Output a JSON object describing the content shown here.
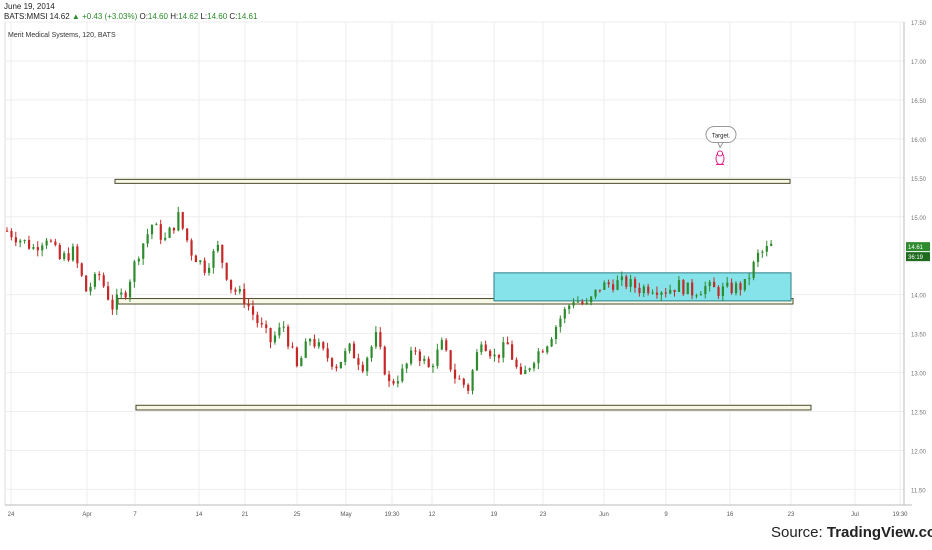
{
  "header": {
    "date": "June 19, 2014",
    "symbol": "BATS:MMSI",
    "last": "14.62",
    "change": "+0.43 (+3.03%)",
    "o_label": "O:",
    "o": "14.60",
    "h_label": "H:",
    "h": "14.62",
    "l_label": "L:",
    "l": "14.60",
    "c_label": "C:",
    "c": "14.61"
  },
  "legend": "Merit Medical Systems, 120, BATS",
  "footer": {
    "source_prefix": "Source: ",
    "source_name": "TradingView.com"
  },
  "chart_data": {
    "type": "candlestick",
    "ylim": [
      11.3,
      17.5
    ],
    "yticks": [
      "17.50",
      "17.00",
      "16.50",
      "16.00",
      "15.50",
      "15.00",
      "14.00",
      "13.50",
      "13.00",
      "12.50",
      "12.00",
      "11.50"
    ],
    "xticks": [
      "24",
      "Apr",
      "7",
      "14",
      "21",
      "25",
      "May",
      "19:30",
      "12",
      "19",
      "23",
      "Jun",
      "9",
      "16",
      "23",
      "Jul",
      "19:30"
    ],
    "price_badge": "14.61",
    "time_badge": "36:19",
    "colors": {
      "up": "#2e8b2e",
      "down": "#c62828",
      "grid": "#eeeeee",
      "box_border": "#4a4a2a",
      "box_fill": "#f8f8e6",
      "range_fill": "#86e3ea",
      "range_border": "#2a7f88",
      "marker": "#e0208a"
    },
    "annotation": {
      "text": "Target.",
      "price": 16.03
    },
    "support_resistance": [
      {
        "top": 15.48,
        "bottom": 15.43
      },
      {
        "top": 13.95,
        "bottom": 13.88
      },
      {
        "top": 12.58,
        "bottom": 12.52
      }
    ],
    "range_box": {
      "top": 14.28,
      "bottom": 13.92
    },
    "anchors": [
      [
        14.82,
        0
      ],
      [
        14.6,
        2
      ],
      [
        14.75,
        3
      ],
      [
        14.45,
        4
      ],
      [
        14.55,
        5
      ],
      [
        14.05,
        6
      ],
      [
        14.25,
        7
      ],
      [
        13.85,
        8
      ],
      [
        14.05,
        9
      ],
      [
        14.55,
        10
      ],
      [
        14.9,
        11
      ],
      [
        14.7,
        12
      ],
      [
        15.0,
        13
      ],
      [
        14.55,
        14
      ],
      [
        14.35,
        15
      ],
      [
        14.6,
        16
      ],
      [
        14.1,
        17
      ],
      [
        13.95,
        18
      ],
      [
        13.65,
        19
      ],
      [
        13.4,
        20
      ],
      [
        13.6,
        21
      ],
      [
        13.05,
        22
      ],
      [
        13.45,
        23
      ],
      [
        13.25,
        24
      ],
      [
        13.1,
        25
      ],
      [
        13.3,
        26
      ],
      [
        13.1,
        27
      ],
      [
        13.45,
        28
      ],
      [
        12.85,
        29
      ],
      [
        13.0,
        30
      ],
      [
        13.3,
        31
      ],
      [
        13.05,
        32
      ],
      [
        13.35,
        33
      ],
      [
        12.95,
        34
      ],
      [
        12.8,
        35
      ],
      [
        13.45,
        36
      ],
      [
        13.2,
        37
      ],
      [
        13.35,
        38
      ],
      [
        12.9,
        39
      ],
      [
        13.2,
        40
      ],
      [
        13.4,
        41
      ],
      [
        13.7,
        42
      ],
      [
        13.95,
        43
      ],
      [
        13.85,
        44
      ],
      [
        14.1,
        45
      ],
      [
        14.15,
        46
      ],
      [
        14.15,
        47
      ],
      [
        14.08,
        48
      ],
      [
        14.1,
        49
      ],
      [
        14.06,
        50
      ],
      [
        14.12,
        51
      ],
      [
        14.04,
        52
      ],
      [
        14.1,
        53
      ],
      [
        14.05,
        54
      ],
      [
        14.08,
        55
      ],
      [
        14.12,
        56
      ],
      [
        14.5,
        57
      ],
      [
        14.62,
        58
      ]
    ]
  }
}
